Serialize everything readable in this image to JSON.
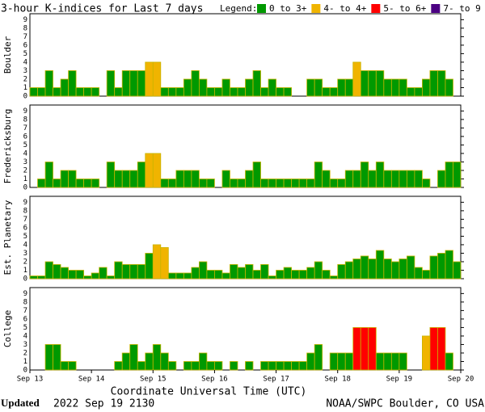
{
  "header": {
    "title": "3-hour K-indices for Last 7 days",
    "legend_title": "Legend:",
    "legend": [
      {
        "label": "0 to 3+",
        "color": "#009900"
      },
      {
        "label": "4- to 4+",
        "color": "#f0b400"
      },
      {
        "label": "5- to 6+",
        "color": "#ff0000"
      },
      {
        "label": "7- to 9",
        "color": "#4b0082"
      }
    ]
  },
  "chart_data": [
    {
      "type": "bar",
      "ylabel": "Boulder",
      "ylim": [
        0,
        9.7
      ],
      "yticks": [
        0,
        1,
        2,
        3,
        4,
        5,
        6,
        7,
        8,
        9
      ],
      "xlim": [
        0,
        56
      ],
      "values": [
        1,
        1,
        3,
        1,
        2,
        3,
        1,
        1,
        1,
        0,
        3,
        1,
        3,
        3,
        3,
        4,
        4,
        1,
        1,
        1,
        2,
        3,
        2,
        1,
        1,
        2,
        1,
        1,
        2,
        3,
        1,
        2,
        1,
        1,
        0,
        0,
        2,
        2,
        1,
        1,
        2,
        2,
        4,
        3,
        3,
        3,
        2,
        2,
        2,
        1,
        1,
        2,
        3,
        3,
        2,
        0
      ]
    },
    {
      "type": "bar",
      "ylabel": "Fredericksburg",
      "ylim": [
        0,
        9.7
      ],
      "yticks": [
        0,
        1,
        2,
        3,
        4,
        5,
        6,
        7,
        8,
        9
      ],
      "xlim": [
        0,
        56
      ],
      "values": [
        0,
        1,
        3,
        1,
        2,
        2,
        1,
        1,
        1,
        0,
        3,
        2,
        2,
        2,
        3,
        4,
        4,
        1,
        1,
        2,
        2,
        2,
        1,
        1,
        0,
        2,
        1,
        1,
        2,
        3,
        1,
        1,
        1,
        1,
        1,
        1,
        1,
        3,
        2,
        1,
        1,
        2,
        2,
        3,
        2,
        3,
        2,
        2,
        2,
        2,
        2,
        1,
        0,
        2,
        3,
        3
      ]
    },
    {
      "type": "bar",
      "ylabel": "Est. Planetary",
      "ylim": [
        0,
        9.7
      ],
      "yticks": [
        0,
        1,
        2,
        3,
        4,
        5,
        6,
        7,
        8,
        9
      ],
      "xlim": [
        0,
        56
      ],
      "values": [
        0.33,
        0.33,
        2,
        1.67,
        1.33,
        1,
        1,
        0.33,
        0.67,
        1.33,
        0.33,
        2,
        1.67,
        1.67,
        1.67,
        3,
        4,
        3.67,
        0.67,
        0.67,
        0.67,
        1.33,
        2,
        1,
        1,
        0.67,
        1.67,
        1.33,
        1.67,
        1,
        1.67,
        0.33,
        1,
        1.33,
        1,
        1,
        1.33,
        2,
        1,
        0.33,
        1.67,
        2,
        2.33,
        2.67,
        2.33,
        3.33,
        2.33,
        2,
        2.33,
        2.67,
        1.33,
        1,
        2.67,
        3,
        3.33,
        2
      ]
    },
    {
      "type": "bar",
      "ylabel": "College",
      "ylim": [
        0,
        9.7
      ],
      "yticks": [
        0,
        1,
        2,
        3,
        4,
        5,
        6,
        7,
        8,
        9
      ],
      "xlim": [
        0,
        56
      ],
      "values": [
        0,
        0,
        3,
        3,
        1,
        1,
        0,
        0,
        0,
        0,
        0,
        1,
        2,
        3,
        1,
        2,
        3,
        2,
        1,
        0,
        1,
        1,
        2,
        1,
        1,
        0,
        1,
        0,
        1,
        0,
        1,
        1,
        1,
        1,
        1,
        1,
        2,
        3,
        0,
        2,
        2,
        2,
        5,
        5,
        5,
        2,
        2,
        2,
        2,
        0,
        0,
        4,
        5,
        5,
        2,
        0
      ],
      "xticks": [
        {
          "value": 0,
          "label": "Sep 13"
        },
        {
          "value": 8,
          "label": "Sep 14"
        },
        {
          "value": 16,
          "label": "Sep 15"
        },
        {
          "value": 24,
          "label": "Sep 16"
        },
        {
          "value": 32,
          "label": "Sep 17"
        },
        {
          "value": 40,
          "label": "Sep 18"
        },
        {
          "value": 48,
          "label": "Sep 19"
        },
        {
          "value": 56,
          "label": "Sep 20"
        }
      ],
      "xlabel": "Coordinate Universal Time (UTC)"
    }
  ],
  "footer": {
    "updated_label": "Updated",
    "updated": "2022 Sep 19 2130",
    "credit": "NOAA/SWPC Boulder, CO USA"
  }
}
